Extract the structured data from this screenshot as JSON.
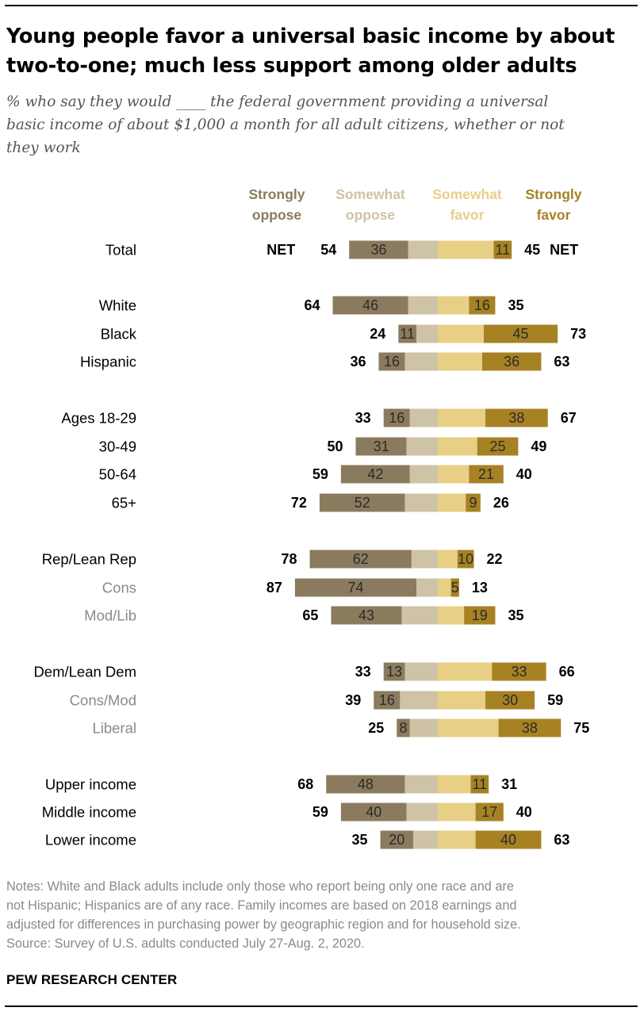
{
  "title_lines": [
    "Young people favor a universal basic income by about",
    "two-to-one; much less support among older adults"
  ],
  "subtitle_lines": [
    "% who say they would ____ the federal government providing a universal",
    "basic income of about $1,000 a month for all adult citizens, whether or not",
    "they work"
  ],
  "notes_lines": [
    "Notes: White and Black adults include only those who report being only one race and are",
    "not Hispanic; Hispanics are of any race. Family incomes are based on 2018 earnings and",
    "adjusted for differences in purchasing power by geographic region and for household size.",
    "Source: Survey of U.S. adults conducted July 27-Aug. 2, 2020."
  ],
  "brand": "PEW RESEARCH CENTER",
  "colors": {
    "strongly_oppose": "#8b7b5e",
    "somewhat_oppose": "#cec3a6",
    "somewhat_favor": "#e8cf86",
    "strongly_favor": "#a78223",
    "legend_strongly_oppose": "#8b7b5e",
    "legend_somewhat_oppose": "#cec3a6",
    "legend_somewhat_favor": "#e8cf86",
    "legend_strongly_favor": "#a78223",
    "label_subgroup": "#8a8a8a"
  },
  "chart_data": {
    "type": "bar",
    "orientation": "horizontal-diverging",
    "legend": [
      {
        "key": "strongly_oppose",
        "lines": [
          "Strongly",
          "oppose"
        ]
      },
      {
        "key": "somewhat_oppose",
        "lines": [
          "Somewhat",
          "oppose"
        ]
      },
      {
        "key": "somewhat_favor",
        "lines": [
          "Somewhat",
          "favor"
        ]
      },
      {
        "key": "strongly_favor",
        "lines": [
          "Strongly",
          "favor"
        ]
      }
    ],
    "net_label": "NET",
    "categories": [
      {
        "label": "Total",
        "strongly_oppose": 36,
        "net_oppose": 54,
        "strongly_favor": 11,
        "net_favor": 45,
        "net_label": true
      },
      {
        "label": "White",
        "strongly_oppose": 46,
        "net_oppose": 64,
        "strongly_favor": 16,
        "net_favor": 35,
        "group_start": true
      },
      {
        "label": "Black",
        "strongly_oppose": 11,
        "net_oppose": 24,
        "strongly_favor": 45,
        "net_favor": 73
      },
      {
        "label": "Hispanic",
        "strongly_oppose": 16,
        "net_oppose": 36,
        "strongly_favor": 36,
        "net_favor": 63
      },
      {
        "label": "Ages 18-29",
        "strongly_oppose": 16,
        "net_oppose": 33,
        "strongly_favor": 38,
        "net_favor": 67,
        "group_start": true
      },
      {
        "label": "30-49",
        "strongly_oppose": 31,
        "net_oppose": 50,
        "strongly_favor": 25,
        "net_favor": 49
      },
      {
        "label": "50-64",
        "strongly_oppose": 42,
        "net_oppose": 59,
        "strongly_favor": 21,
        "net_favor": 40
      },
      {
        "label": "65+",
        "strongly_oppose": 52,
        "net_oppose": 72,
        "strongly_favor": 9,
        "net_favor": 26
      },
      {
        "label": "Rep/Lean Rep",
        "strongly_oppose": 62,
        "net_oppose": 78,
        "strongly_favor": 10,
        "net_favor": 22,
        "group_start": true
      },
      {
        "label": "Cons",
        "strongly_oppose": 74,
        "net_oppose": 87,
        "strongly_favor": 5,
        "net_favor": 13,
        "sub": true
      },
      {
        "label": "Mod/Lib",
        "strongly_oppose": 43,
        "net_oppose": 65,
        "strongly_favor": 19,
        "net_favor": 35,
        "sub": true
      },
      {
        "label": "Dem/Lean Dem",
        "strongly_oppose": 13,
        "net_oppose": 33,
        "strongly_favor": 33,
        "net_favor": 66,
        "group_start": true
      },
      {
        "label": "Cons/Mod",
        "strongly_oppose": 16,
        "net_oppose": 39,
        "strongly_favor": 30,
        "net_favor": 59,
        "sub": true
      },
      {
        "label": "Liberal",
        "strongly_oppose": 8,
        "net_oppose": 25,
        "strongly_favor": 38,
        "net_favor": 75,
        "sub": true
      },
      {
        "label": "Upper income",
        "strongly_oppose": 48,
        "net_oppose": 68,
        "strongly_favor": 11,
        "net_favor": 31,
        "group_start": true
      },
      {
        "label": "Middle income",
        "strongly_oppose": 40,
        "net_oppose": 59,
        "strongly_favor": 17,
        "net_favor": 40
      },
      {
        "label": "Lower income",
        "strongly_oppose": 20,
        "net_oppose": 35,
        "strongly_favor": 40,
        "net_favor": 63
      }
    ]
  }
}
